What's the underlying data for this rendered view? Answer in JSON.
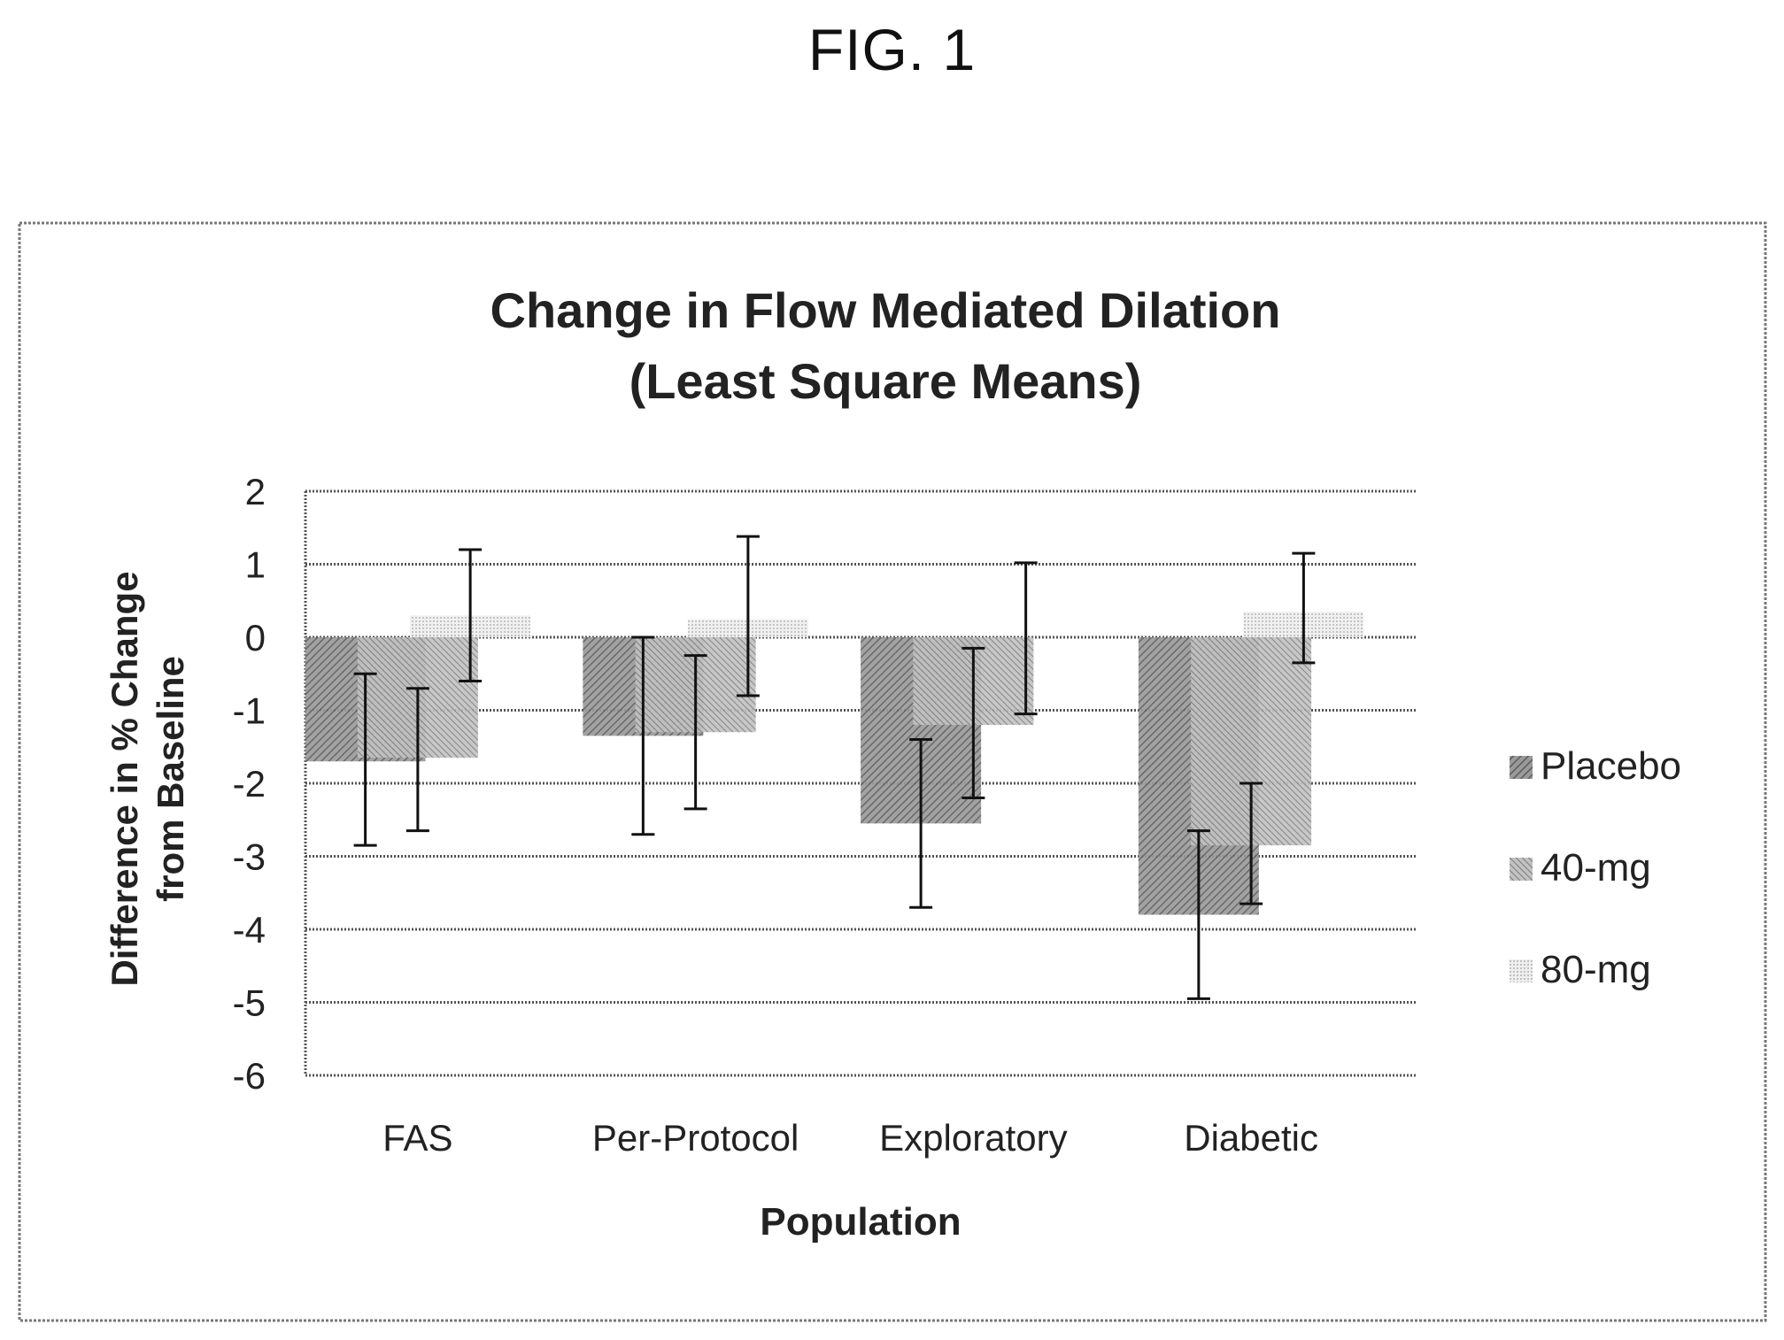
{
  "figure_label": "FIG. 1",
  "colors": {
    "placebo": "#8f8f8f",
    "mg40": "#b6b6b6",
    "mg80": "#e4e4e4",
    "grid": "#555555",
    "text": "#222222",
    "frame": "#777777",
    "error_bar": "#111111"
  },
  "chart_data": {
    "type": "bar",
    "title": "Change in Flow Mediated Dilation",
    "subtitle": "(Least Square Means)",
    "xlabel": "Population",
    "ylabel_lines": [
      "Difference in % Change",
      "from Baseline"
    ],
    "categories": [
      "FAS",
      "Per-Protocol",
      "Exploratory",
      "Diabetic"
    ],
    "ylim": [
      -6,
      2
    ],
    "yticks": [
      2,
      1,
      0,
      -1,
      -2,
      -3,
      -4,
      -5,
      -6
    ],
    "grid": true,
    "legend_position": "right",
    "series": [
      {
        "name": "Placebo",
        "values": [
          -1.7,
          -1.35,
          -2.55,
          -3.8
        ],
        "err_low": [
          -2.85,
          -2.7,
          -3.7,
          -4.95
        ],
        "err_high": [
          -0.5,
          0.0,
          -1.4,
          -2.65
        ]
      },
      {
        "name": "40-mg",
        "values": [
          -1.65,
          -1.3,
          -1.2,
          -2.85
        ],
        "err_low": [
          -2.65,
          -2.35,
          -2.2,
          -3.65
        ],
        "err_high": [
          -0.7,
          -0.25,
          -0.15,
          -2.0
        ]
      },
      {
        "name": "80-mg",
        "values": [
          0.3,
          0.25,
          0.0,
          0.35
        ],
        "err_low": [
          -0.6,
          -0.8,
          -1.05,
          -0.35
        ],
        "err_high": [
          1.2,
          1.38,
          1.02,
          1.15
        ]
      }
    ]
  }
}
